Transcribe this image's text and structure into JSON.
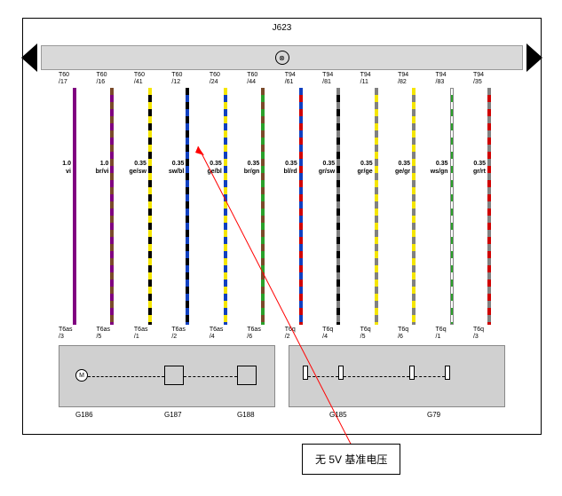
{
  "header": {
    "module_label": "J623",
    "indicator": "⊗"
  },
  "wires": [
    {
      "top_pin1": "T60",
      "top_pin2": "/17",
      "size": "1.0",
      "color_code": "vi",
      "bottom_pin1": "T6as",
      "bottom_pin2": "/3",
      "c1": "#800080",
      "c2": "#800080",
      "dashed": false
    },
    {
      "top_pin1": "T60",
      "top_pin2": "/16",
      "size": "1.0",
      "color_code": "br/vi",
      "bottom_pin1": "T6as",
      "bottom_pin2": "/5",
      "c1": "#7a4a2a",
      "c2": "#800080",
      "dashed": true
    },
    {
      "top_pin1": "T60",
      "top_pin2": "/41",
      "size": "0.35",
      "color_code": "ge/sw",
      "bottom_pin1": "T6as",
      "bottom_pin2": "/1",
      "c1": "#f5e600",
      "c2": "#000000",
      "dashed": true
    },
    {
      "top_pin1": "T60",
      "top_pin2": "/12",
      "size": "0.35",
      "color_code": "sw/bl",
      "bottom_pin1": "T6as",
      "bottom_pin2": "/2",
      "c1": "#000000",
      "c2": "#1040c0",
      "dashed": true
    },
    {
      "top_pin1": "T60",
      "top_pin2": "/24",
      "size": "0.35",
      "color_code": "ge/bl",
      "bottom_pin1": "T6as",
      "bottom_pin2": "/4",
      "c1": "#f5e600",
      "c2": "#1040c0",
      "dashed": true
    },
    {
      "top_pin1": "T60",
      "top_pin2": "/44",
      "size": "0.35",
      "color_code": "br/gn",
      "bottom_pin1": "T6as",
      "bottom_pin2": "/6",
      "c1": "#7a4a2a",
      "c2": "#2aa02a",
      "dashed": true
    },
    {
      "top_pin1": "T94",
      "top_pin2": "/61",
      "size": "0.35",
      "color_code": "bl/rd",
      "bottom_pin1": "T6q",
      "bottom_pin2": "/2",
      "c1": "#1040c0",
      "c2": "#d00000",
      "dashed": true
    },
    {
      "top_pin1": "T94",
      "top_pin2": "/81",
      "size": "0.35",
      "color_code": "gr/sw",
      "bottom_pin1": "T6q",
      "bottom_pin2": "/4",
      "c1": "#808080",
      "c2": "#000000",
      "dashed": true
    },
    {
      "top_pin1": "T94",
      "top_pin2": "/11",
      "size": "0.35",
      "color_code": "gr/ge",
      "bottom_pin1": "T6q",
      "bottom_pin2": "/5",
      "c1": "#808080",
      "c2": "#f5e600",
      "dashed": true
    },
    {
      "top_pin1": "T94",
      "top_pin2": "/82",
      "size": "0.35",
      "color_code": "ge/gr",
      "bottom_pin1": "T6q",
      "bottom_pin2": "/6",
      "c1": "#f5e600",
      "c2": "#808080",
      "dashed": true
    },
    {
      "top_pin1": "T94",
      "top_pin2": "/83",
      "size": "0.35",
      "color_code": "ws/gn",
      "bottom_pin1": "T6q",
      "bottom_pin2": "/1",
      "c1": "#ffffff",
      "c2": "#2aa02a",
      "dashed": true,
      "outline": true
    },
    {
      "top_pin1": "T94",
      "top_pin2": "/35",
      "size": "0.35",
      "color_code": "gr/rt",
      "bottom_pin1": "T6q",
      "bottom_pin2": "/3",
      "c1": "#808080",
      "c2": "#d00000",
      "dashed": true
    }
  ],
  "components": {
    "left_module": {
      "labels": [
        "G186",
        "G187",
        "G188"
      ]
    },
    "right_module": {
      "labels": [
        "G185",
        "G79"
      ]
    }
  },
  "annotation": {
    "text": "无 5V 基准电压"
  }
}
